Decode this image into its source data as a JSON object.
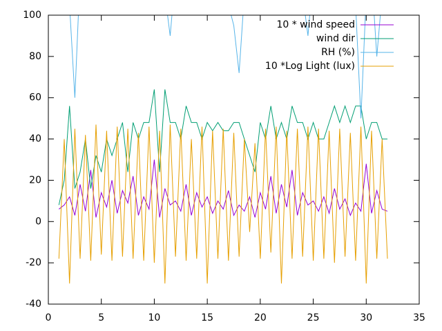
{
  "chart_data": {
    "type": "line",
    "x": [
      1,
      1.5,
      2,
      2.5,
      3,
      3.5,
      4,
      4.5,
      5,
      5.5,
      6,
      6.5,
      7,
      7.5,
      8,
      8.5,
      9,
      9.5,
      10,
      10.5,
      11,
      11.5,
      12,
      12.5,
      13,
      13.5,
      14,
      14.5,
      15,
      15.5,
      16,
      16.5,
      17,
      17.5,
      18,
      18.5,
      19,
      19.5,
      20,
      20.5,
      21,
      21.5,
      22,
      22.5,
      23,
      23.5,
      24,
      24.5,
      25,
      25.5,
      26,
      26.5,
      27,
      27.5,
      28,
      28.5,
      29,
      29.5,
      30,
      30.5,
      31,
      31.5,
      32
    ],
    "series": [
      {
        "name": "10 * wind speed",
        "color": "#9400d3",
        "values": [
          6,
          8,
          12,
          3,
          18,
          5,
          25,
          2,
          14,
          7,
          20,
          4,
          15,
          9,
          22,
          3,
          12,
          6,
          30,
          2,
          16,
          8,
          10,
          5,
          18,
          3,
          14,
          7,
          12,
          4,
          10,
          6,
          15,
          3,
          8,
          5,
          12,
          2,
          14,
          6,
          22,
          4,
          18,
          7,
          25,
          3,
          14,
          8,
          10,
          5,
          12,
          4,
          16,
          6,
          11,
          3,
          9,
          5,
          28,
          4,
          15,
          6,
          5
        ]
      },
      {
        "name": "wind dir",
        "color": "#009e73",
        "values": [
          8,
          20,
          56,
          16,
          24,
          40,
          16,
          32,
          24,
          40,
          32,
          40,
          48,
          24,
          48,
          40,
          48,
          48,
          64,
          24,
          64,
          48,
          48,
          40,
          56,
          48,
          48,
          40,
          48,
          44,
          48,
          44,
          44,
          48,
          48,
          40,
          32,
          24,
          48,
          40,
          56,
          40,
          48,
          40,
          56,
          48,
          48,
          40,
          48,
          40,
          40,
          48,
          56,
          48,
          56,
          48,
          56,
          56,
          40,
          48,
          48,
          40,
          40
        ]
      },
      {
        "name": "RH (%)",
        "color": "#56b4e9",
        "values": [
          120,
          110,
          105,
          60,
          120,
          115,
          110,
          120,
          105,
          110,
          120,
          115,
          110,
          120,
          100,
          120,
          110,
          105,
          115,
          120,
          110,
          90,
          120,
          115,
          110,
          105,
          120,
          110,
          100,
          115,
          120,
          110,
          105,
          95,
          72,
          110,
          120,
          100,
          115,
          110,
          120,
          105,
          110,
          120,
          100,
          115,
          110,
          90,
          120,
          110,
          105,
          120,
          100,
          110,
          120,
          115,
          105,
          50,
          110,
          120,
          80,
          110,
          105
        ]
      },
      {
        "name": "10 *Log Light (lux)",
        "color": "#e69f00",
        "values": [
          -18,
          40,
          -30,
          45,
          -18,
          42,
          -19,
          47,
          -16,
          44,
          -19,
          46,
          -17,
          45,
          -18,
          43,
          -19,
          46,
          -20,
          44,
          -30,
          47,
          -17,
          45,
          -19,
          40,
          -18,
          46,
          -30,
          44,
          -18,
          45,
          -19,
          43,
          -17,
          40,
          -5,
          38,
          -18,
          45,
          -15,
          46,
          -30,
          44,
          -18,
          45,
          -17,
          46,
          -19,
          45,
          -18,
          44,
          -20,
          45,
          -17,
          43,
          -19,
          46,
          -30,
          44,
          -18,
          40,
          -18
        ]
      }
    ],
    "xlim": [
      0,
      35
    ],
    "xticks": [
      0,
      5,
      10,
      15,
      20,
      25,
      30,
      35
    ],
    "ylim": [
      -40,
      100
    ],
    "yticks": [
      -40,
      -20,
      0,
      20,
      40,
      60,
      80,
      100
    ],
    "legend": "top-right"
  }
}
